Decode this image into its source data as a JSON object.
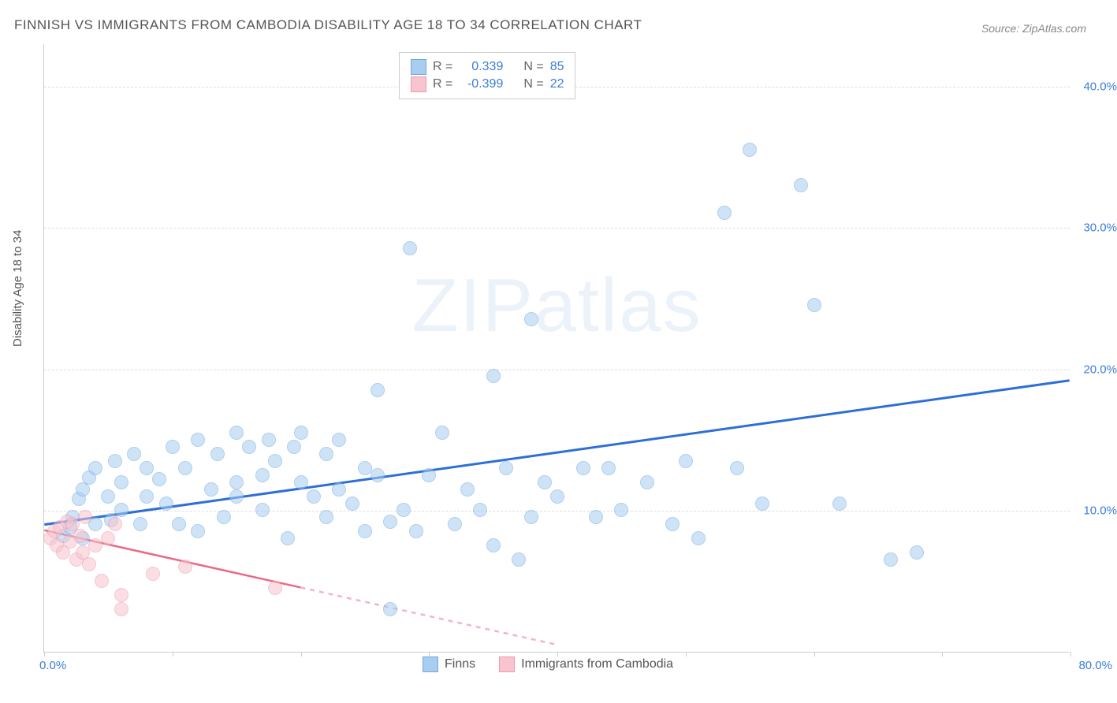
{
  "title": "FINNISH VS IMMIGRANTS FROM CAMBODIA DISABILITY AGE 18 TO 34 CORRELATION CHART",
  "source": "Source: ZipAtlas.com",
  "y_axis_label": "Disability Age 18 to 34",
  "watermark": "ZIPatlas",
  "chart": {
    "type": "scatter",
    "background_color": "#ffffff",
    "grid_color": "#dddddd",
    "axis_color": "#cccccc",
    "xlim": [
      0,
      80
    ],
    "ylim": [
      0,
      43
    ],
    "x_ticks": [
      0,
      10,
      20,
      30,
      40,
      50,
      60,
      70,
      80
    ],
    "x_tick_labels": {
      "0": "0.0%",
      "80": "80.0%"
    },
    "x_tick_label_colors": {
      "0": "#3b7dd8",
      "80": "#3b7dd8"
    },
    "y_ticks": [
      10,
      20,
      30,
      40
    ],
    "y_tick_labels": {
      "10": "10.0%",
      "20": "20.0%",
      "30": "30.0%",
      "40": "40.0%"
    },
    "y_tick_label_colors": {
      "10": "#3b7dd8",
      "20": "#3b7dd8",
      "30": "#3b7dd8",
      "40": "#3b7dd8"
    },
    "point_radius": 9,
    "point_opacity": 0.55,
    "series": [
      {
        "name": "Finns",
        "fill_color": "#a9cdf0",
        "stroke_color": "#6fa8e2",
        "trend_color": "#2d6fd6",
        "trend_width": 3,
        "trend_solid_range": [
          0,
          80
        ],
        "trend": {
          "x1": 0,
          "y1": 9.0,
          "x2": 80,
          "y2": 19.2
        },
        "R": "0.339",
        "N": "85",
        "r_color": "#3b7dd8",
        "points": [
          [
            1.5,
            8.2
          ],
          [
            2,
            8.8
          ],
          [
            2.2,
            9.5
          ],
          [
            2.7,
            10.8
          ],
          [
            3,
            11.5
          ],
          [
            3,
            8.0
          ],
          [
            3.5,
            12.3
          ],
          [
            4,
            9.0
          ],
          [
            4,
            13.0
          ],
          [
            5,
            11.0
          ],
          [
            5.2,
            9.3
          ],
          [
            5.5,
            13.5
          ],
          [
            6,
            12.0
          ],
          [
            6,
            10.0
          ],
          [
            7,
            14.0
          ],
          [
            7.5,
            9.0
          ],
          [
            8,
            11.0
          ],
          [
            8,
            13.0
          ],
          [
            9,
            12.2
          ],
          [
            9.5,
            10.5
          ],
          [
            10,
            14.5
          ],
          [
            10.5,
            9.0
          ],
          [
            11,
            13.0
          ],
          [
            12,
            15.0
          ],
          [
            12,
            8.5
          ],
          [
            13,
            11.5
          ],
          [
            13.5,
            14.0
          ],
          [
            14,
            9.5
          ],
          [
            15,
            15.5
          ],
          [
            15,
            12.0
          ],
          [
            16,
            14.5
          ],
          [
            17,
            10.0
          ],
          [
            17.5,
            15.0
          ],
          [
            18,
            13.5
          ],
          [
            19,
            8.0
          ],
          [
            19.5,
            14.5
          ],
          [
            20,
            15.5
          ],
          [
            21,
            11.0
          ],
          [
            22,
            9.5
          ],
          [
            22,
            14.0
          ],
          [
            23,
            15.0
          ],
          [
            24,
            10.5
          ],
          [
            25,
            8.5
          ],
          [
            25,
            13.0
          ],
          [
            26,
            18.5
          ],
          [
            27,
            9.2
          ],
          [
            27,
            3.0
          ],
          [
            28,
            10.0
          ],
          [
            28.5,
            28.5
          ],
          [
            29,
            8.5
          ],
          [
            30,
            12.5
          ],
          [
            31,
            15.5
          ],
          [
            32,
            9.0
          ],
          [
            33,
            11.5
          ],
          [
            34,
            10.0
          ],
          [
            35,
            19.5
          ],
          [
            35,
            7.5
          ],
          [
            36,
            13.0
          ],
          [
            37,
            6.5
          ],
          [
            38,
            9.5
          ],
          [
            38,
            23.5
          ],
          [
            39,
            12.0
          ],
          [
            40,
            11.0
          ],
          [
            42,
            13.0
          ],
          [
            43,
            9.5
          ],
          [
            44,
            13.0
          ],
          [
            45,
            10.0
          ],
          [
            47,
            12.0
          ],
          [
            49,
            9.0
          ],
          [
            50,
            13.5
          ],
          [
            51,
            8.0
          ],
          [
            53,
            31.0
          ],
          [
            54,
            13.0
          ],
          [
            55,
            35.5
          ],
          [
            56,
            10.5
          ],
          [
            59,
            33.0
          ],
          [
            60,
            24.5
          ],
          [
            62,
            10.5
          ],
          [
            66,
            6.5
          ],
          [
            68,
            7.0
          ],
          [
            15,
            11.0
          ],
          [
            17,
            12.5
          ],
          [
            20,
            12.0
          ],
          [
            23,
            11.5
          ],
          [
            26,
            12.5
          ]
        ]
      },
      {
        "name": "Immigrants from Cambodia",
        "fill_color": "#f7c4cf",
        "stroke_color": "#ef99ab",
        "trend_color": "#e86b87",
        "trend_width": 2.5,
        "trend_solid_range": [
          0,
          20
        ],
        "trend_dashed_range": [
          20,
          40
        ],
        "trend": {
          "x1": 0,
          "y1": 8.6,
          "x2": 40,
          "y2": 0.5
        },
        "R": "-0.399",
        "N": "22",
        "r_color": "#3b7dd8",
        "points": [
          [
            0.5,
            8.0
          ],
          [
            0.8,
            8.5
          ],
          [
            1.0,
            7.5
          ],
          [
            1.2,
            8.8
          ],
          [
            1.5,
            7.0
          ],
          [
            1.8,
            9.2
          ],
          [
            2.0,
            7.8
          ],
          [
            2.2,
            9.0
          ],
          [
            2.5,
            6.5
          ],
          [
            2.8,
            8.2
          ],
          [
            3.0,
            7.0
          ],
          [
            3.2,
            9.5
          ],
          [
            3.5,
            6.2
          ],
          [
            4.0,
            7.5
          ],
          [
            4.5,
            5.0
          ],
          [
            5.0,
            8.0
          ],
          [
            5.5,
            9.0
          ],
          [
            6.0,
            4.0
          ],
          [
            6,
            3.0
          ],
          [
            8.5,
            5.5
          ],
          [
            11,
            6.0
          ],
          [
            18,
            4.5
          ]
        ]
      }
    ]
  },
  "legend_top": {
    "rows": [
      {
        "swatch_fill": "#a9cdf0",
        "swatch_stroke": "#6fa8e2",
        "r_label": "R =",
        "r_value": "0.339",
        "n_label": "N =",
        "n_value": "85",
        "value_color": "#3b7dd8"
      },
      {
        "swatch_fill": "#f7c4cf",
        "swatch_stroke": "#ef99ab",
        "r_label": "R =",
        "r_value": "-0.399",
        "n_label": "N =",
        "n_value": "22",
        "value_color": "#3b7dd8"
      }
    ]
  },
  "legend_bottom": {
    "items": [
      {
        "swatch_fill": "#a9cdf0",
        "swatch_stroke": "#6fa8e2",
        "label": "Finns"
      },
      {
        "swatch_fill": "#f7c4cf",
        "swatch_stroke": "#ef99ab",
        "label": "Immigrants from Cambodia"
      }
    ]
  }
}
